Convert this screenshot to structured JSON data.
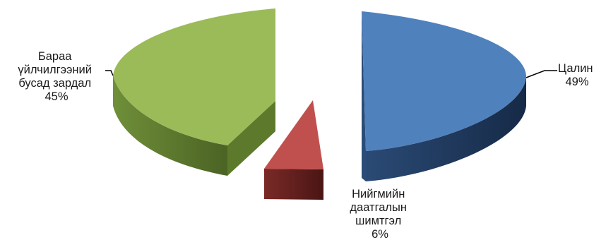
{
  "chart_data": {
    "type": "pie",
    "title": "",
    "style": "3d-exploded",
    "slices": [
      {
        "label": [
          "Цалин"
        ],
        "percent": "49%",
        "value": 49,
        "color": "#4f81bd",
        "side_color": "#1f3a5f"
      },
      {
        "label": [
          "Нийгмийн",
          "даатгалын",
          "шимтгэл"
        ],
        "percent": "6%",
        "value": 6,
        "color": "#c0504d",
        "side_color": "#5e1e1c"
      },
      {
        "label": [
          "Бараа",
          "үйлчилгээний",
          "бусад зардал"
        ],
        "percent": "45%",
        "value": 45,
        "color": "#9bbb59",
        "side_color": "#4f6a2a"
      }
    ]
  }
}
